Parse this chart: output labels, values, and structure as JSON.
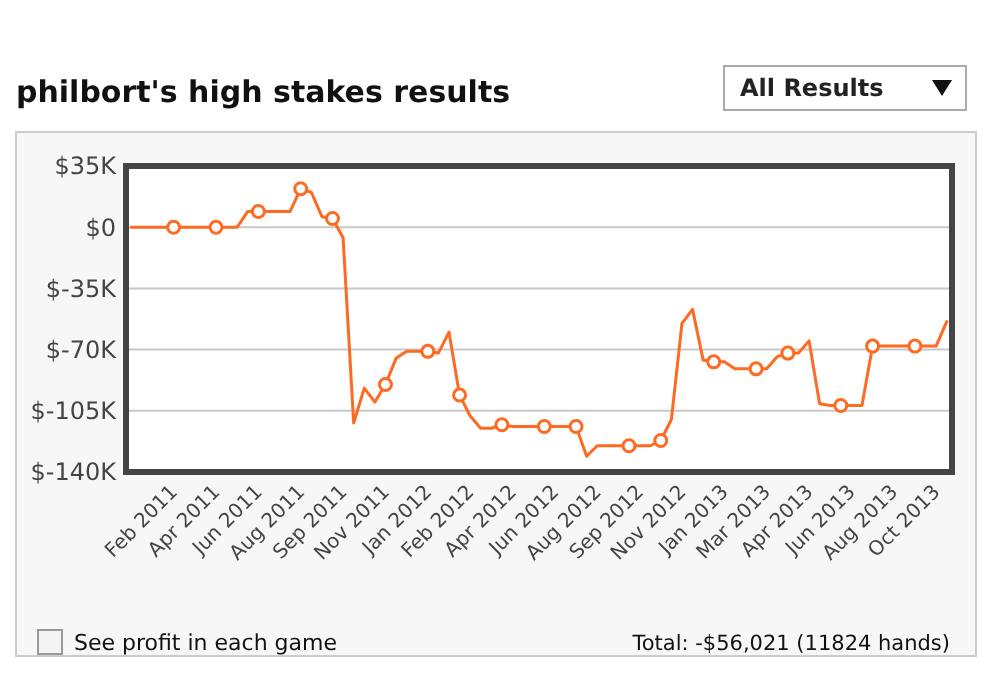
{
  "chart_data": {
    "type": "line",
    "title": "philbort's high stakes results",
    "annotations": [
      "All Results",
      "See profit in each game",
      "Total: -$56,021 (11824 hands)"
    ],
    "categories": [
      null,
      null,
      null,
      null,
      "Feb 2011",
      null,
      null,
      null,
      "Apr 2011",
      null,
      null,
      null,
      "Jun 2011",
      null,
      null,
      null,
      "Aug 2011",
      null,
      null,
      null,
      "Sep 2011",
      null,
      null,
      null,
      "Nov 2011",
      null,
      null,
      null,
      "Jan 2012",
      null,
      null,
      null,
      "Feb 2012",
      null,
      null,
      null,
      "Apr 2012",
      null,
      null,
      null,
      "Jun 2012",
      null,
      null,
      null,
      "Aug 2012",
      null,
      null,
      null,
      "Sep 2012",
      null,
      null,
      null,
      "Nov 2012",
      null,
      null,
      null,
      "Jan 2013",
      null,
      null,
      null,
      "Mar 2013",
      null,
      null,
      null,
      "Apr 2013",
      null,
      null,
      null,
      "Jun 2013",
      null,
      null,
      null,
      "Aug 2013",
      null,
      null,
      null,
      "Oct 2013",
      null
    ],
    "ylim": [
      -140,
      35
    ],
    "yticks": [
      {
        "value": 35,
        "label": "$35K"
      },
      {
        "value": 0,
        "label": "$0"
      },
      {
        "value": -35,
        "label": "$-35K"
      },
      {
        "value": -70,
        "label": "$-70K"
      },
      {
        "value": -105,
        "label": "$-105K"
      },
      {
        "value": -140,
        "label": "$-140K"
      }
    ],
    "grid": "y",
    "line_style": "solid",
    "series": [
      {
        "color": "#ff6a22",
        "marker": "none",
        "values": [
          0,
          0,
          0,
          0,
          0,
          0,
          0,
          0,
          0,
          0,
          0,
          9,
          9,
          9,
          9,
          9,
          22,
          20,
          6,
          5,
          -6,
          -112,
          -92,
          -100,
          -90,
          -75,
          -71,
          -71,
          -71,
          -72,
          -60,
          -96,
          -108,
          -115,
          -115,
          -113,
          -114,
          -114,
          -114,
          -114,
          -114,
          -114,
          -114,
          -131,
          -125,
          -125,
          -125,
          -125,
          -125,
          -125,
          -122,
          -110,
          -55,
          -47,
          -76,
          -77,
          -77,
          -81,
          -81,
          -81,
          -81,
          -74,
          -72,
          -72,
          -65,
          -101,
          -102,
          -102,
          -102,
          -102,
          -68,
          -68,
          -68,
          -68,
          -68,
          -68,
          -68,
          -54
        ]
      },
      {
        "type": "scatter",
        "color": "#ff6a22",
        "marker": "circle",
        "values": [
          null,
          null,
          null,
          null,
          0,
          null,
          null,
          null,
          0,
          null,
          null,
          null,
          9,
          null,
          null,
          null,
          22,
          null,
          null,
          5,
          null,
          null,
          null,
          null,
          -90,
          null,
          null,
          null,
          -71,
          null,
          null,
          -96,
          null,
          null,
          null,
          -113,
          null,
          null,
          null,
          -114,
          null,
          null,
          -114,
          null,
          null,
          null,
          null,
          -125,
          null,
          null,
          -122,
          null,
          null,
          null,
          null,
          -77,
          null,
          null,
          null,
          -81,
          null,
          null,
          -72,
          null,
          null,
          null,
          null,
          -102,
          null,
          null,
          -68,
          null,
          null,
          null,
          -68,
          null,
          null,
          null
        ]
      }
    ]
  }
}
